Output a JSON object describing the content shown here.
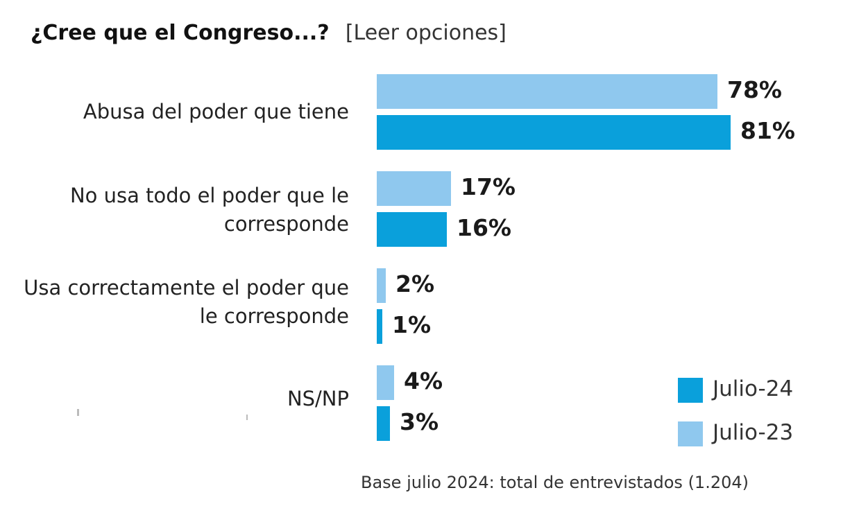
{
  "header": {
    "question": "¿Cree que el Congreso...?",
    "instruction": "[Leer opciones]"
  },
  "chart_data": {
    "type": "bar",
    "orientation": "horizontal",
    "categories": [
      "Abusa del poder que tiene",
      "No usa todo el poder que le corresponde",
      "Usa correctamente el poder que le corresponde",
      "NS/NP"
    ],
    "series": [
      {
        "name": "Julio-23",
        "color": "#8fc8ee",
        "values": [
          78,
          17,
          2,
          4
        ]
      },
      {
        "name": "Julio-24",
        "color": "#0aa0db",
        "values": [
          81,
          16,
          1,
          3
        ]
      }
    ],
    "value_labels": {
      "Julio-23": [
        "78%",
        "17%",
        "2%",
        "4%"
      ],
      "Julio-24": [
        "81%",
        "16%",
        "1%",
        "3%"
      ]
    },
    "unit": "%",
    "xlim": [
      0,
      100
    ],
    "grid": false,
    "legend_position": "bottom-right",
    "legend_order": [
      "Julio-24",
      "Julio-23"
    ]
  },
  "footnote": "Base julio 2024: total de entrevistados (1.204)"
}
